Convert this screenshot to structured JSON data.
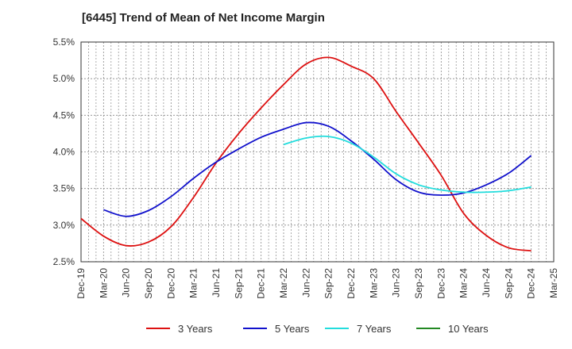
{
  "chart_data": {
    "type": "line",
    "title": "[6445]  Trend of Mean of Net Income Margin",
    "xlabel": "",
    "ylabel": "",
    "x_ticks": [
      "Dec-19",
      "Mar-20",
      "Jun-20",
      "Sep-20",
      "Dec-20",
      "Mar-21",
      "Jun-21",
      "Sep-21",
      "Dec-21",
      "Mar-22",
      "Jun-22",
      "Sep-22",
      "Dec-22",
      "Mar-23",
      "Jun-23",
      "Sep-23",
      "Dec-23",
      "Mar-24",
      "Jun-24",
      "Sep-24",
      "Dec-24",
      "Mar-25"
    ],
    "y_ticks": [
      "2.5%",
      "3.0%",
      "3.5%",
      "4.0%",
      "4.5%",
      "5.0%",
      "5.5%"
    ],
    "ylim": [
      2.5,
      5.5
    ],
    "grid": true,
    "legend_position": "bottom",
    "series": [
      {
        "name": "3 Years",
        "color": "#dd1111",
        "x": [
          "Dec-19",
          "Mar-20",
          "Jun-20",
          "Sep-20",
          "Dec-20",
          "Mar-21",
          "Jun-21",
          "Sep-21",
          "Dec-21",
          "Mar-22",
          "Jun-22",
          "Sep-22",
          "Dec-22",
          "Mar-23",
          "Jun-23",
          "Sep-23",
          "Dec-23",
          "Mar-24",
          "Jun-24",
          "Sep-24",
          "Dec-24"
        ],
        "values": [
          3.09,
          2.85,
          2.72,
          2.77,
          2.98,
          3.38,
          3.85,
          4.25,
          4.6,
          4.92,
          5.2,
          5.29,
          5.17,
          5.0,
          4.55,
          4.12,
          3.68,
          3.16,
          2.86,
          2.69,
          2.65
        ]
      },
      {
        "name": "5 Years",
        "color": "#1111cc",
        "x": [
          "Mar-20",
          "Jun-20",
          "Sep-20",
          "Dec-20",
          "Mar-21",
          "Jun-21",
          "Sep-21",
          "Dec-21",
          "Mar-22",
          "Jun-22",
          "Sep-22",
          "Dec-22",
          "Mar-23",
          "Jun-23",
          "Sep-23",
          "Dec-23",
          "Mar-24",
          "Jun-24",
          "Sep-24",
          "Dec-24"
        ],
        "values": [
          3.21,
          3.12,
          3.2,
          3.39,
          3.64,
          3.86,
          4.04,
          4.2,
          4.31,
          4.4,
          4.35,
          4.15,
          3.9,
          3.62,
          3.45,
          3.41,
          3.44,
          3.55,
          3.71,
          3.95
        ]
      },
      {
        "name": "7 Years",
        "color": "#22dddd",
        "x": [
          "Mar-22",
          "Jun-22",
          "Sep-22",
          "Dec-22",
          "Mar-23",
          "Jun-23",
          "Sep-23",
          "Dec-23",
          "Mar-24",
          "Jun-24",
          "Sep-24",
          "Dec-24"
        ],
        "values": [
          4.1,
          4.19,
          4.21,
          4.12,
          3.93,
          3.7,
          3.55,
          3.48,
          3.45,
          3.45,
          3.47,
          3.52
        ]
      },
      {
        "name": "10 Years",
        "color": "#228822",
        "x": [],
        "values": []
      }
    ]
  }
}
